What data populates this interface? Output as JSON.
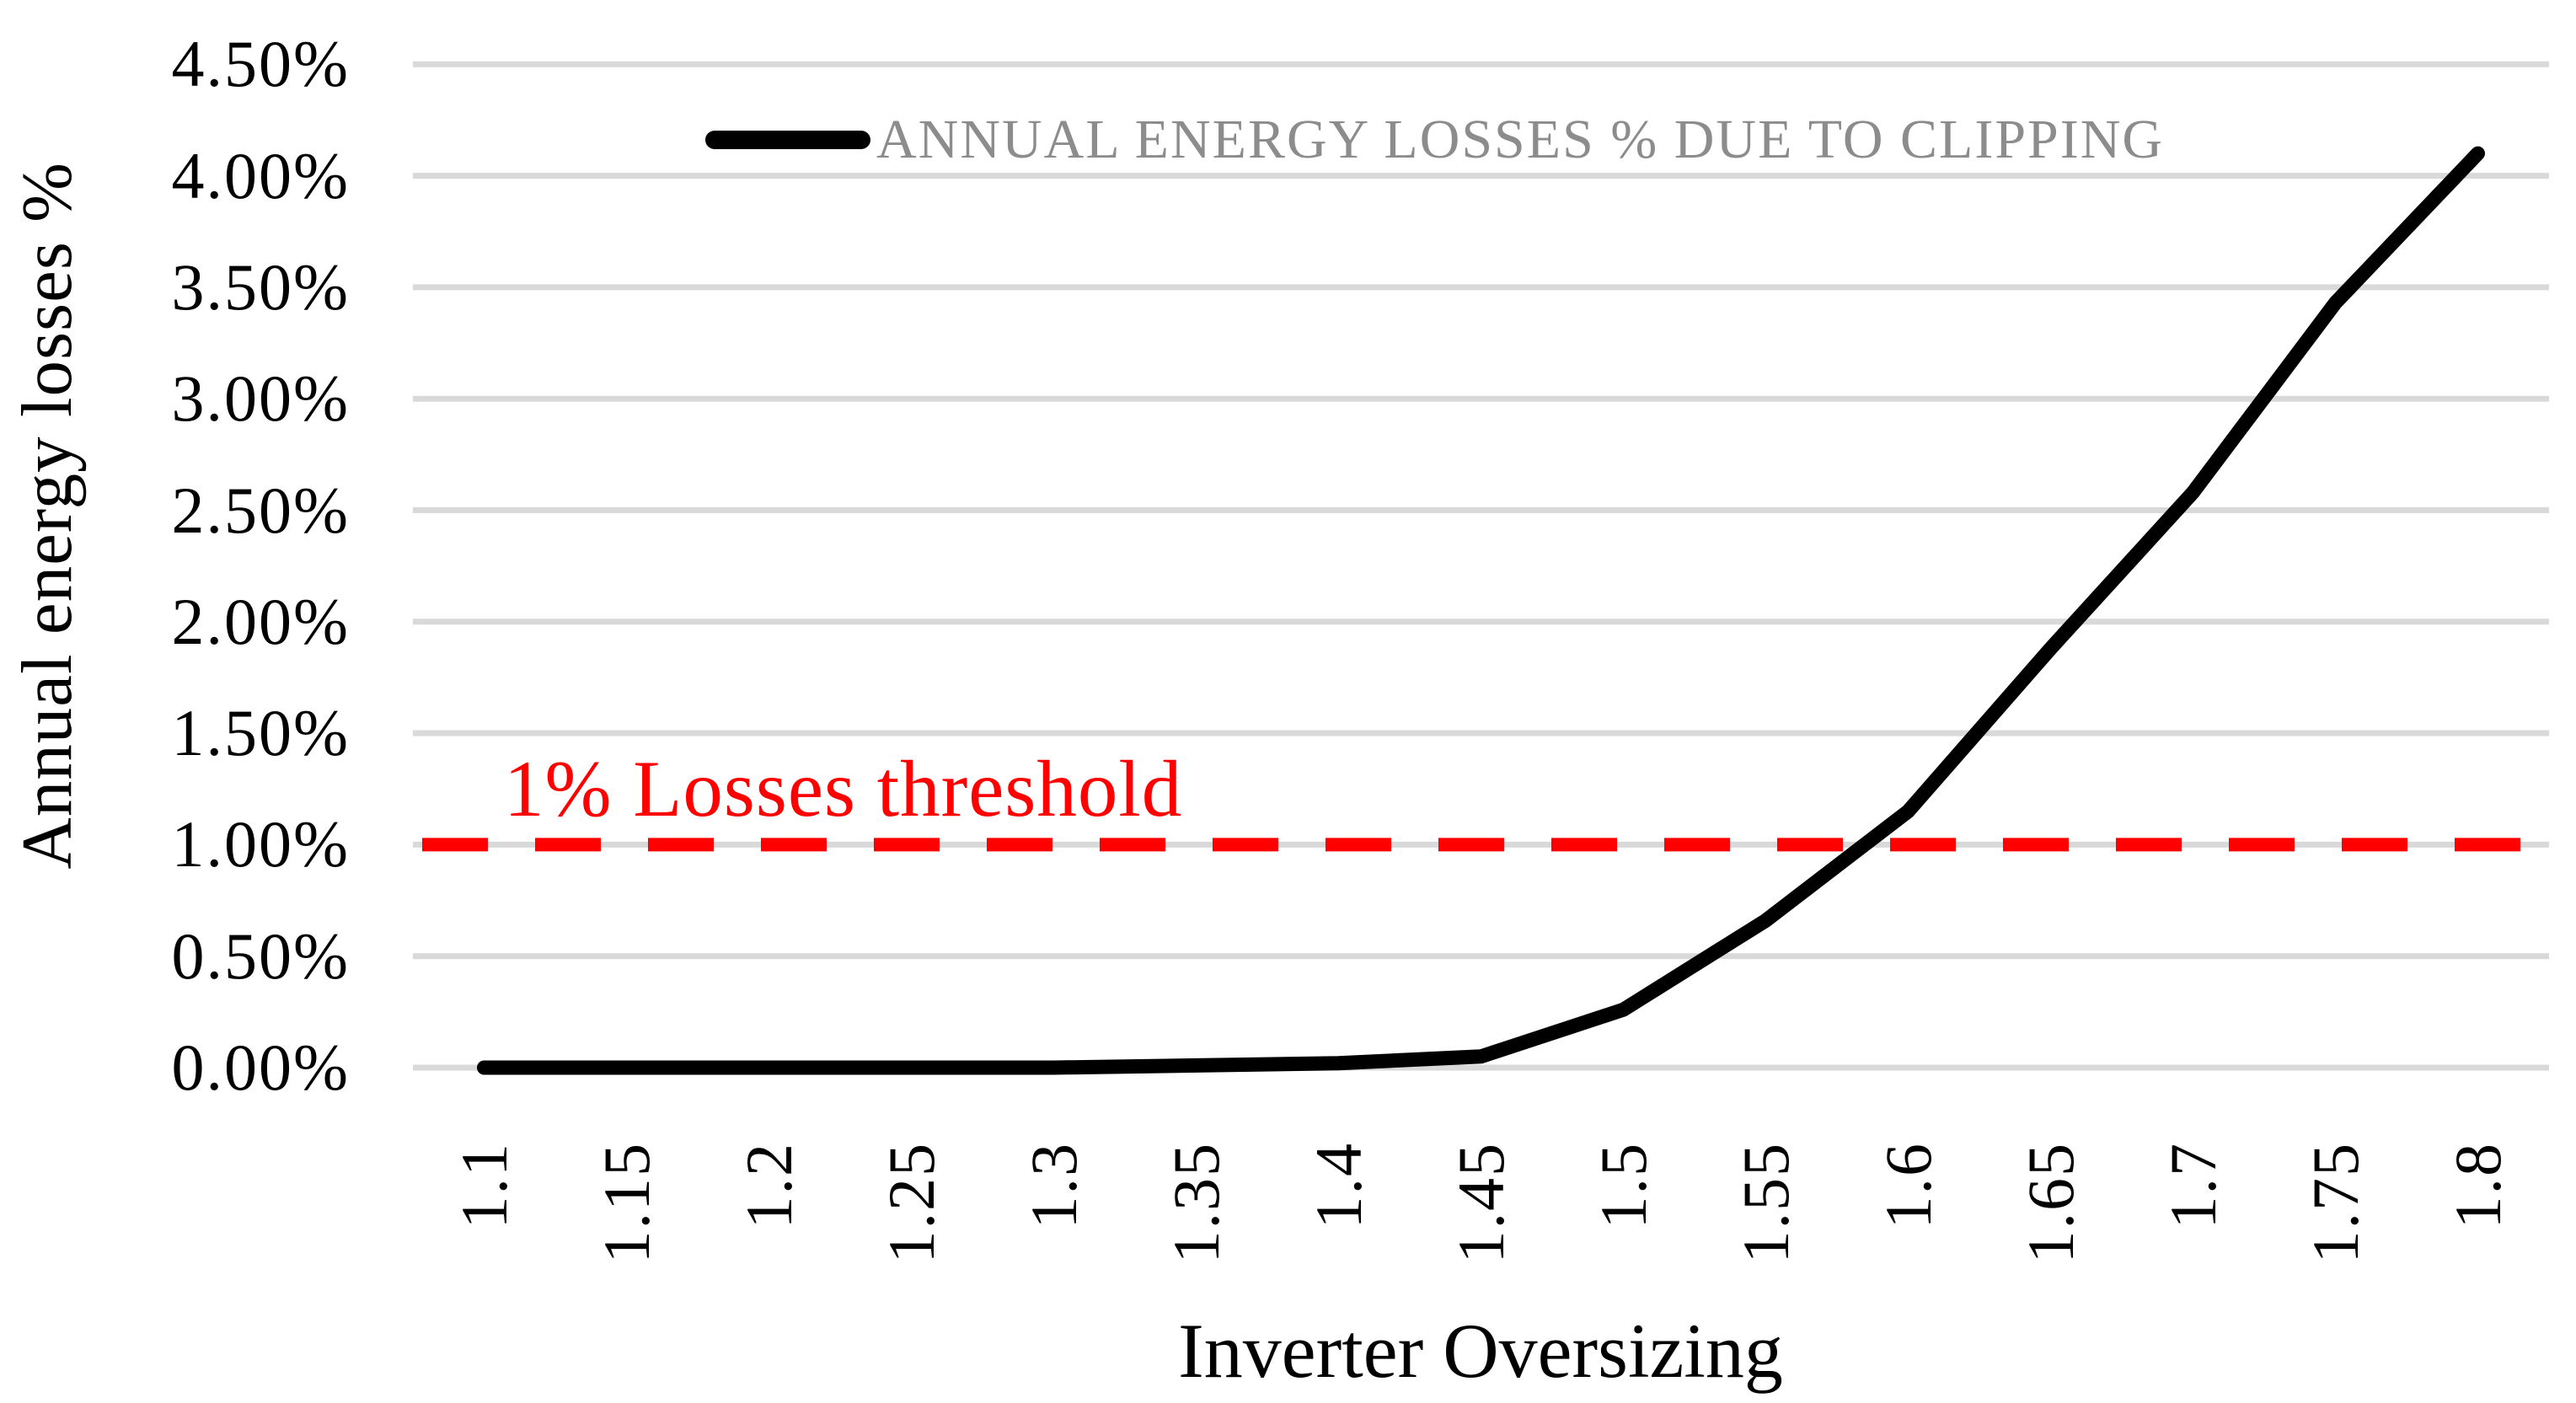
{
  "chart_data": {
    "type": "line",
    "title": "",
    "xlabel": "Inverter Oversizing",
    "ylabel": "Annual energy losses %",
    "categories": [
      "1.1",
      "1.15",
      "1.2",
      "1.25",
      "1.3",
      "1.35",
      "1.4",
      "1.45",
      "1.5",
      "1.55",
      "1.6",
      "1.65",
      "1.7",
      "1.75",
      "1.8"
    ],
    "series": [
      {
        "name": "ANNUAL ENERGY LOSSES % DUE TO CLIPPING",
        "values_pct": [
          0.0,
          0.0,
          0.0,
          0.0,
          0.0,
          0.01,
          0.02,
          0.05,
          0.26,
          0.66,
          1.15,
          1.88,
          2.58,
          3.43,
          4.1
        ]
      }
    ],
    "y_tick_labels": [
      "0.00%",
      "0.50%",
      "1.00%",
      "1.50%",
      "2.00%",
      "2.50%",
      "3.00%",
      "3.50%",
      "4.00%",
      "4.50%"
    ],
    "y_tick_values_pct": [
      0.0,
      0.5,
      1.0,
      1.5,
      2.0,
      2.5,
      3.0,
      3.5,
      4.0,
      4.5
    ],
    "ylim_pct": [
      0.0,
      4.5
    ],
    "y_step_pct": 0.5,
    "grid": true,
    "legend_position": "top-center",
    "threshold": {
      "value_pct": 1.0,
      "label": "1% Losses threshold"
    }
  },
  "colors": {
    "series": "#000000",
    "threshold": "#FF0000",
    "grid": "#D9D9D9",
    "legend_text": "#8C8C8C",
    "axis_text": "#000000",
    "background": "#FFFFFF"
  }
}
